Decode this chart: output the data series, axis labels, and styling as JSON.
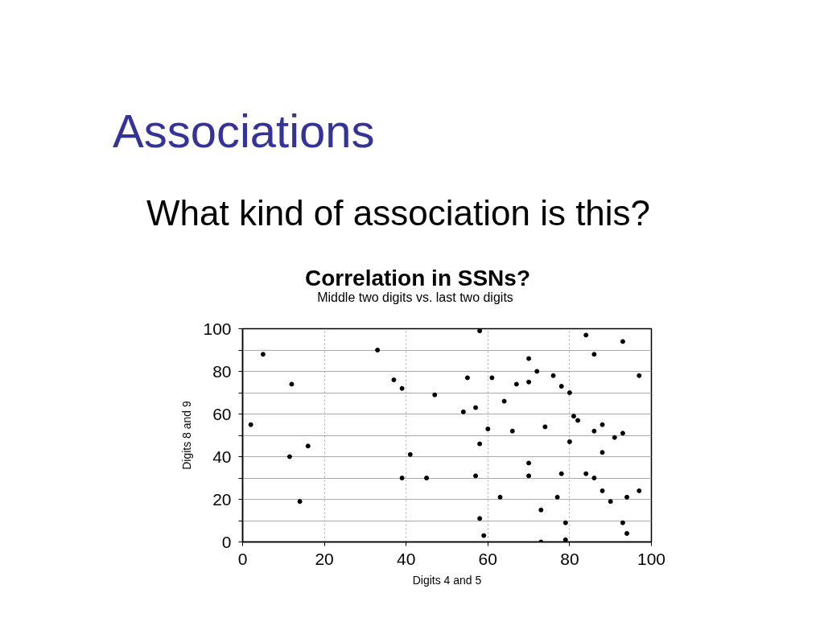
{
  "chart_data": {
    "type": "scatter",
    "title": "Correlation in SSNs?",
    "subtitle": "Middle two digits vs. last two digits",
    "xlabel": "Digits 4 and 5",
    "ylabel": "Digits 8 and 9",
    "annotations": [
      "Associations",
      "What kind of association is this?"
    ],
    "x": [
      2,
      5,
      12,
      11.5,
      16,
      14,
      33,
      37,
      39,
      41,
      39,
      45,
      47,
      54,
      55,
      57,
      57,
      58,
      58,
      58,
      59,
      60,
      61,
      63,
      64,
      66,
      67,
      70,
      70,
      70,
      70,
      72,
      73,
      73,
      74,
      76,
      77,
      78,
      78,
      79,
      79,
      80,
      80,
      81,
      82,
      84,
      84,
      86,
      86,
      86,
      88,
      88,
      88,
      91,
      90,
      93,
      93,
      93,
      94,
      94,
      97,
      97
    ],
    "values": [
      55,
      88,
      74,
      40,
      45,
      19,
      90,
      76,
      72,
      41,
      30,
      30,
      69,
      61,
      77,
      63,
      31,
      99,
      46,
      11,
      3,
      53,
      77,
      21,
      66,
      52,
      74,
      86,
      75,
      37,
      31,
      80,
      15,
      0,
      54,
      78,
      21,
      32,
      73,
      9,
      1,
      70,
      47,
      59,
      57,
      97,
      32,
      88,
      52,
      30,
      55,
      42,
      24,
      49,
      19,
      94,
      51,
      9,
      21,
      4,
      78,
      24
    ],
    "color": "#000000",
    "marker": "circle",
    "xlim": [
      0,
      100
    ],
    "ylim": [
      0,
      100
    ],
    "xticks": [
      0,
      20,
      40,
      60,
      80,
      100
    ],
    "yticks": [
      0,
      {
        "value": 10,
        "label": null
      },
      20,
      {
        "value": 30,
        "label": null
      },
      40,
      {
        "value": 50,
        "label": null
      },
      60,
      {
        "value": 70,
        "label": null
      },
      80,
      {
        "value": 90,
        "label": null
      },
      100
    ],
    "grid": true
  }
}
